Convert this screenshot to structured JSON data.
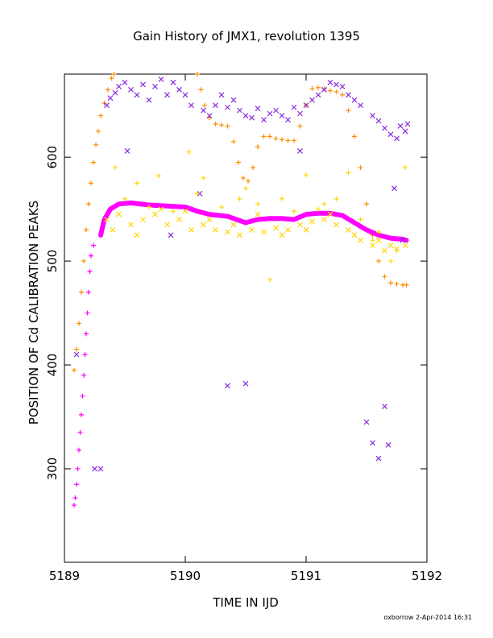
{
  "chart_data": {
    "type": "scatter",
    "title": "Gain History of JMX1, revolution 1395",
    "xlabel": "TIME IN IJD",
    "ylabel": "POSITION OF Cd CALIBRATION PEAKS",
    "xlim": [
      5189,
      5192
    ],
    "ylim": [
      210,
      680
    ],
    "x_ticks": [
      5189,
      5190,
      5191,
      5192
    ],
    "y_ticks": [
      300,
      400,
      500,
      600
    ],
    "grid": false,
    "legend": "none",
    "series": [
      {
        "marker": "plus",
        "color": "#ff8c00",
        "points": [
          [
            5189.08,
            395
          ],
          [
            5189.1,
            415
          ],
          [
            5189.12,
            440
          ],
          [
            5189.14,
            470
          ],
          [
            5189.16,
            500
          ],
          [
            5189.18,
            530
          ],
          [
            5189.2,
            555
          ],
          [
            5189.22,
            575
          ],
          [
            5189.24,
            595
          ],
          [
            5189.26,
            612
          ],
          [
            5189.28,
            625
          ],
          [
            5189.3,
            640
          ],
          [
            5189.33,
            652
          ],
          [
            5189.36,
            665
          ],
          [
            5189.39,
            676
          ],
          [
            5189.41,
            680
          ],
          [
            5190.1,
            680
          ],
          [
            5190.13,
            665
          ],
          [
            5190.16,
            650
          ],
          [
            5190.2,
            638
          ],
          [
            5190.25,
            632
          ],
          [
            5190.3,
            631
          ],
          [
            5190.35,
            630
          ],
          [
            5190.4,
            615
          ],
          [
            5190.44,
            595
          ],
          [
            5190.48,
            580
          ],
          [
            5190.52,
            577
          ],
          [
            5190.56,
            590
          ],
          [
            5190.6,
            610
          ],
          [
            5190.65,
            620
          ],
          [
            5190.7,
            620
          ],
          [
            5190.75,
            618
          ],
          [
            5190.8,
            617
          ],
          [
            5190.85,
            616
          ],
          [
            5190.9,
            616
          ],
          [
            5190.95,
            630
          ],
          [
            5191.0,
            650
          ],
          [
            5191.05,
            666
          ],
          [
            5191.1,
            667
          ],
          [
            5191.15,
            666
          ],
          [
            5191.2,
            664
          ],
          [
            5191.25,
            663
          ],
          [
            5191.3,
            660
          ],
          [
            5191.35,
            645
          ],
          [
            5191.4,
            620
          ],
          [
            5191.45,
            590
          ],
          [
            5191.5,
            555
          ],
          [
            5191.55,
            525
          ],
          [
            5191.6,
            500
          ],
          [
            5191.65,
            485
          ],
          [
            5191.7,
            479
          ],
          [
            5191.75,
            478
          ],
          [
            5191.8,
            477
          ],
          [
            5191.83,
            477
          ]
        ]
      },
      {
        "marker": "thick-line",
        "color": "#ff00ff",
        "points": [
          [
            5189.3,
            525
          ],
          [
            5189.33,
            540
          ],
          [
            5189.38,
            550
          ],
          [
            5189.45,
            555
          ],
          [
            5189.55,
            556
          ],
          [
            5189.7,
            554
          ],
          [
            5189.85,
            553
          ],
          [
            5190.0,
            552
          ],
          [
            5190.1,
            548
          ],
          [
            5190.2,
            545
          ],
          [
            5190.35,
            543
          ],
          [
            5190.5,
            537
          ],
          [
            5190.6,
            540
          ],
          [
            5190.7,
            541
          ],
          [
            5190.8,
            541
          ],
          [
            5190.9,
            540
          ],
          [
            5191.0,
            545
          ],
          [
            5191.1,
            546
          ],
          [
            5191.2,
            546
          ],
          [
            5191.3,
            544
          ],
          [
            5191.4,
            537
          ],
          [
            5191.5,
            530
          ],
          [
            5191.6,
            525
          ],
          [
            5191.7,
            522
          ],
          [
            5191.8,
            521
          ],
          [
            5191.83,
            520
          ]
        ]
      },
      {
        "marker": "plus",
        "color": "#ff00ff",
        "points": [
          [
            5189.08,
            265
          ],
          [
            5189.09,
            272
          ],
          [
            5189.1,
            285
          ],
          [
            5189.11,
            300
          ],
          [
            5189.12,
            318
          ],
          [
            5189.13,
            335
          ],
          [
            5189.14,
            352
          ],
          [
            5189.15,
            370
          ],
          [
            5189.16,
            390
          ],
          [
            5189.17,
            410
          ],
          [
            5189.18,
            430
          ],
          [
            5189.19,
            450
          ],
          [
            5189.2,
            470
          ],
          [
            5189.21,
            490
          ],
          [
            5189.22,
            505
          ],
          [
            5189.24,
            515
          ]
        ]
      },
      {
        "marker": "x",
        "color": "#8a2be2",
        "points": [
          [
            5189.25,
            300
          ],
          [
            5189.52,
            606
          ],
          [
            5189.88,
            525
          ],
          [
            5190.12,
            565
          ],
          [
            5190.35,
            380
          ],
          [
            5190.5,
            382
          ],
          [
            5190.95,
            606
          ],
          [
            5191.5,
            345
          ],
          [
            5191.55,
            325
          ],
          [
            5191.6,
            310
          ],
          [
            5191.65,
            360
          ],
          [
            5191.68,
            323
          ],
          [
            5191.73,
            570
          ],
          [
            5191.8,
            520
          ],
          [
            5189.1,
            410
          ],
          [
            5189.3,
            300
          ],
          [
            5189.35,
            650
          ],
          [
            5189.38,
            657
          ],
          [
            5189.42,
            662
          ],
          [
            5189.45,
            668
          ],
          [
            5189.5,
            672
          ],
          [
            5189.55,
            665
          ],
          [
            5189.6,
            660
          ],
          [
            5189.65,
            670
          ],
          [
            5189.7,
            655
          ],
          [
            5189.75,
            668
          ],
          [
            5189.8,
            675
          ],
          [
            5189.85,
            660
          ],
          [
            5189.9,
            672
          ],
          [
            5189.95,
            665
          ],
          [
            5190.0,
            660
          ],
          [
            5190.05,
            650
          ],
          [
            5190.15,
            645
          ],
          [
            5190.2,
            640
          ],
          [
            5190.25,
            650
          ],
          [
            5190.3,
            660
          ],
          [
            5190.35,
            648
          ],
          [
            5190.4,
            655
          ],
          [
            5190.45,
            645
          ],
          [
            5190.5,
            640
          ],
          [
            5190.55,
            638
          ],
          [
            5190.6,
            647
          ],
          [
            5190.65,
            636
          ],
          [
            5190.7,
            642
          ],
          [
            5190.75,
            645
          ],
          [
            5190.8,
            640
          ],
          [
            5190.85,
            636
          ],
          [
            5190.9,
            648
          ],
          [
            5190.95,
            642
          ],
          [
            5191.0,
            650
          ],
          [
            5191.05,
            655
          ],
          [
            5191.1,
            660
          ],
          [
            5191.15,
            665
          ],
          [
            5191.2,
            672
          ],
          [
            5191.25,
            670
          ],
          [
            5191.3,
            668
          ],
          [
            5191.35,
            660
          ],
          [
            5191.4,
            655
          ],
          [
            5191.45,
            650
          ],
          [
            5191.55,
            640
          ],
          [
            5191.6,
            635
          ],
          [
            5191.65,
            628
          ],
          [
            5191.7,
            622
          ],
          [
            5191.75,
            618
          ],
          [
            5191.78,
            630
          ],
          [
            5191.82,
            625
          ],
          [
            5191.84,
            632
          ]
        ]
      },
      {
        "marker": "x",
        "color": "#ffd700",
        "points": [
          [
            5189.35,
            540
          ],
          [
            5189.45,
            545
          ],
          [
            5189.55,
            535
          ],
          [
            5189.65,
            540
          ],
          [
            5189.75,
            545
          ],
          [
            5189.85,
            535
          ],
          [
            5189.95,
            540
          ],
          [
            5190.05,
            530
          ],
          [
            5190.15,
            535
          ],
          [
            5190.25,
            530
          ],
          [
            5190.35,
            528
          ],
          [
            5190.45,
            525
          ],
          [
            5190.55,
            530
          ],
          [
            5190.65,
            528
          ],
          [
            5190.75,
            532
          ],
          [
            5190.85,
            530
          ],
          [
            5190.95,
            535
          ],
          [
            5191.05,
            538
          ],
          [
            5191.15,
            540
          ],
          [
            5191.25,
            535
          ],
          [
            5191.35,
            530
          ],
          [
            5191.45,
            520
          ],
          [
            5191.55,
            515
          ],
          [
            5191.65,
            510
          ],
          [
            5191.75,
            512
          ],
          [
            5191.82,
            515
          ],
          [
            5189.4,
            530
          ],
          [
            5189.6,
            525
          ],
          [
            5189.8,
            550
          ],
          [
            5190.0,
            548
          ],
          [
            5190.2,
            540
          ],
          [
            5190.4,
            535
          ],
          [
            5190.6,
            545
          ],
          [
            5190.8,
            525
          ],
          [
            5191.0,
            530
          ],
          [
            5191.2,
            545
          ],
          [
            5191.4,
            525
          ],
          [
            5191.6,
            520
          ],
          [
            5191.7,
            515
          ]
        ]
      },
      {
        "marker": "plus",
        "color": "#ffd700",
        "points": [
          [
            5189.42,
            590
          ],
          [
            5189.6,
            575
          ],
          [
            5189.78,
            582
          ],
          [
            5190.03,
            605
          ],
          [
            5190.15,
            580
          ],
          [
            5190.45,
            560
          ],
          [
            5190.5,
            570
          ],
          [
            5190.6,
            555
          ],
          [
            5190.7,
            482
          ],
          [
            5190.8,
            560
          ],
          [
            5191.0,
            583
          ],
          [
            5191.15,
            555
          ],
          [
            5191.35,
            585
          ],
          [
            5191.55,
            520
          ],
          [
            5191.7,
            500
          ],
          [
            5191.82,
            590
          ],
          [
            5189.5,
            560
          ],
          [
            5189.7,
            552
          ],
          [
            5189.9,
            548
          ],
          [
            5190.1,
            565
          ],
          [
            5190.3,
            552
          ],
          [
            5190.9,
            548
          ],
          [
            5191.1,
            550
          ],
          [
            5191.25,
            560
          ],
          [
            5191.45,
            540
          ],
          [
            5191.6,
            528
          ],
          [
            5191.75,
            510
          ]
        ]
      }
    ]
  },
  "footer": "oxborrow  2-Apr-2014 16:31"
}
